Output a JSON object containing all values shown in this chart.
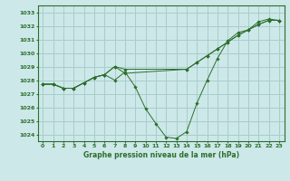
{
  "title": "Graphe pression niveau de la mer (hPa)",
  "background_color": "#cce8e8",
  "grid_color": "#aacccc",
  "line_color": "#2d6e2d",
  "marker_color": "#2d6e2d",
  "ylim": [
    1023.5,
    1033.5
  ],
  "xlim": [
    -0.5,
    23.5
  ],
  "yticks": [
    1024,
    1025,
    1026,
    1027,
    1028,
    1029,
    1030,
    1031,
    1032,
    1033
  ],
  "xticks": [
    0,
    1,
    2,
    3,
    4,
    5,
    6,
    7,
    8,
    9,
    10,
    11,
    12,
    13,
    14,
    15,
    16,
    17,
    18,
    19,
    20,
    21,
    22,
    23
  ],
  "series": [
    {
      "x": [
        0,
        1,
        2,
        3,
        4,
        5,
        6,
        7,
        8,
        9,
        10,
        11,
        12,
        13,
        14,
        15,
        16,
        17,
        18,
        19,
        20,
        21,
        22,
        23
      ],
      "y": [
        1027.7,
        1027.7,
        1027.4,
        1027.4,
        1027.8,
        1028.2,
        1028.4,
        1028.0,
        1028.6,
        1027.5,
        1025.9,
        1024.8,
        1023.8,
        1023.7,
        1024.2,
        1026.3,
        1028.0,
        1029.6,
        1030.9,
        1031.5,
        1031.7,
        1032.3,
        1032.5,
        1032.4
      ]
    },
    {
      "x": [
        0,
        1,
        2,
        3,
        4,
        5,
        6,
        7,
        8,
        14,
        15,
        16,
        17,
        18,
        19,
        20,
        21,
        22,
        23
      ],
      "y": [
        1027.7,
        1027.7,
        1027.4,
        1027.4,
        1027.8,
        1028.2,
        1028.4,
        1029.0,
        1028.8,
        1028.8,
        1029.3,
        1029.8,
        1030.3,
        1030.8,
        1031.3,
        1031.7,
        1032.1,
        1032.4,
        1032.4
      ]
    },
    {
      "x": [
        0,
        1,
        2,
        3,
        4,
        5,
        6,
        7,
        8,
        14,
        15,
        16,
        17,
        18,
        19,
        20,
        21,
        22,
        23
      ],
      "y": [
        1027.7,
        1027.7,
        1027.4,
        1027.4,
        1027.8,
        1028.2,
        1028.4,
        1029.0,
        1028.5,
        1028.8,
        1029.3,
        1029.8,
        1030.3,
        1030.8,
        1031.3,
        1031.7,
        1032.1,
        1032.4,
        1032.4
      ]
    }
  ]
}
